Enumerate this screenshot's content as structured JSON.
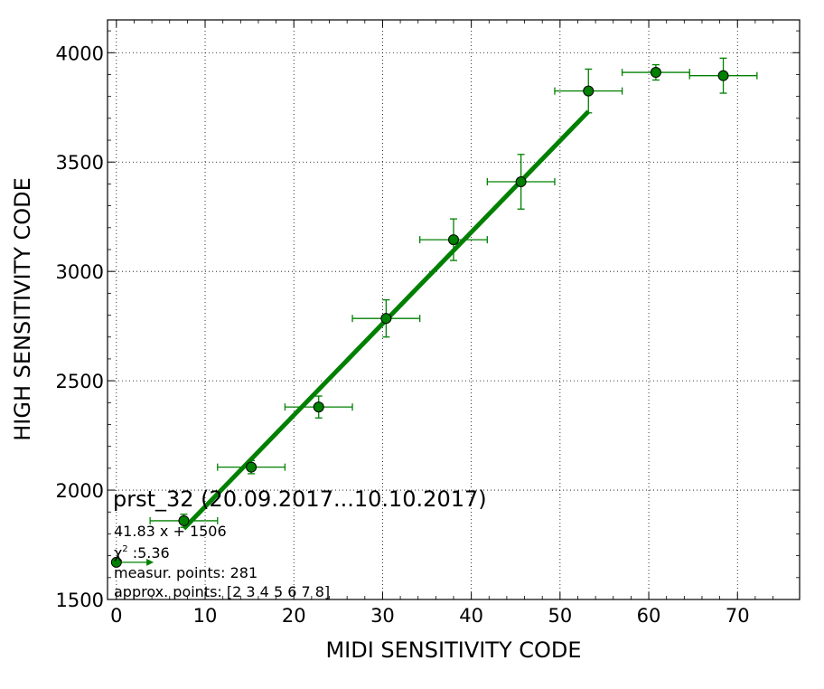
{
  "chart_data": {
    "type": "scatter",
    "title": "",
    "xlabel": "MIDI SENSITIVITY CODE",
    "ylabel": "HIGH SENSITIVITY CODE",
    "xlim": [
      -1,
      77
    ],
    "ylim": [
      1500,
      4150
    ],
    "xticks": [
      0,
      10,
      20,
      30,
      40,
      50,
      60,
      70
    ],
    "yticks": [
      1500,
      2000,
      2500,
      3000,
      3500,
      4000
    ],
    "xtick_labels": [
      "0",
      "10",
      "20",
      "30",
      "40",
      "50",
      "60",
      "70"
    ],
    "ytick_labels": [
      "1500",
      "2000",
      "2500",
      "3000",
      "3500",
      "4000"
    ],
    "grid": true,
    "colors": {
      "series": "#008000",
      "marker_face": "#008000",
      "marker_edge": "#000000"
    },
    "series": [
      {
        "type": "scatter_errorbar",
        "x": [
          0,
          7.6,
          15.2,
          22.8,
          30.4,
          38.0,
          45.6,
          53.2,
          60.8,
          68.4
        ],
        "y": [
          1670,
          1860,
          2105,
          2380,
          2785,
          3145,
          3410,
          3825,
          3910,
          3895
        ],
        "xerr": [
          [
            0,
            3.8,
            3.8,
            3.8,
            3.8,
            3.8,
            3.8,
            3.8,
            3.8,
            3.8
          ],
          [
            4.0,
            3.8,
            3.8,
            3.8,
            3.8,
            3.8,
            3.8,
            3.8,
            3.8,
            3.8
          ]
        ],
        "yerr": [
          0,
          30,
          30,
          50,
          85,
          95,
          125,
          100,
          35,
          80
        ]
      },
      {
        "type": "line",
        "x": [
          7.6,
          53.2
        ],
        "y": [
          1823.9,
          3731.3
        ]
      }
    ],
    "annotations": {
      "title": "prst_32 (20.09.2017...10.10.2017)",
      "fit": "41.83 x + 1506",
      "chi_symbol": "χ",
      "chi_sup": "2",
      "chi_value": " :5.36",
      "measur": "measur. points: 281",
      "approx": "approx. points: [2 3 4 5 6 7 8]"
    }
  }
}
